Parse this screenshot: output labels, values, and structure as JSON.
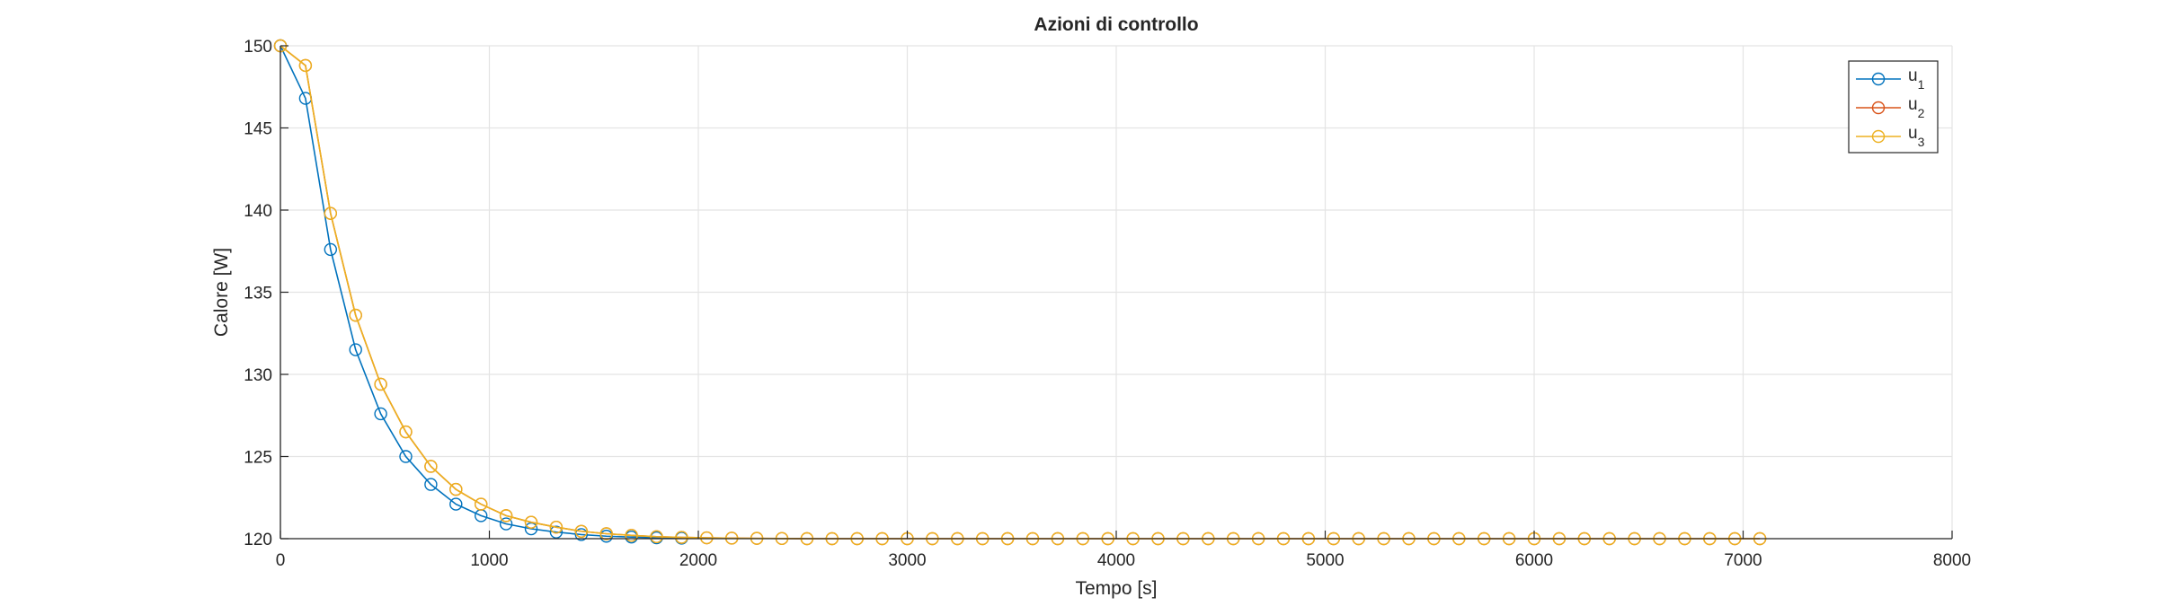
{
  "chart_data": {
    "type": "line",
    "title": "Azioni di controllo",
    "xlabel": "Tempo [s]",
    "ylabel": "Calore [W]",
    "xlim": [
      0,
      8000
    ],
    "ylim": [
      120,
      150
    ],
    "xticks": [
      0,
      1000,
      2000,
      3000,
      4000,
      5000,
      6000,
      7000,
      8000
    ],
    "yticks": [
      120,
      125,
      130,
      135,
      140,
      145,
      150
    ],
    "grid": true,
    "legend_position": "top-right",
    "marker": "circle",
    "series": [
      {
        "name": "u",
        "subscript": "1",
        "color": "#0072BD",
        "x": [
          0,
          120,
          240,
          360,
          480,
          600,
          720,
          840,
          960,
          1080,
          1200,
          1320,
          1440,
          1560,
          1680,
          1800,
          1920
        ],
        "y": [
          150,
          146.8,
          137.6,
          131.5,
          127.6,
          125.0,
          123.3,
          122.1,
          121.4,
          120.9,
          120.6,
          120.4,
          120.25,
          120.15,
          120.1,
          120.05,
          120.03
        ]
      },
      {
        "name": "u",
        "subscript": "2",
        "color": "#D95319",
        "x": [
          0,
          120,
          240,
          360,
          480,
          600,
          720,
          840,
          960,
          1080,
          1200,
          1320,
          1440,
          1560,
          1680,
          1800,
          1920,
          2040,
          2160,
          2280,
          2400,
          2520,
          2640,
          2760,
          2880,
          3000,
          3120,
          3240,
          3360,
          3480,
          3600,
          3720,
          3840,
          3960,
          4080,
          4200,
          4320,
          4440,
          4560,
          4680,
          4800,
          4920,
          5040,
          5160,
          5280,
          5400,
          5520,
          5640,
          5760,
          5880,
          6000,
          6120,
          6240,
          6360,
          6480,
          6600,
          6720,
          6840,
          6960,
          7080
        ],
        "y": [
          150,
          148.8,
          139.8,
          133.6,
          129.4,
          126.5,
          124.4,
          123.0,
          122.1,
          121.4,
          121.0,
          120.7,
          120.45,
          120.3,
          120.2,
          120.12,
          120.08,
          120.05,
          120.03,
          120.02,
          120.01,
          120,
          120,
          120,
          120,
          120,
          120,
          120,
          120,
          120,
          120,
          120,
          120,
          120,
          120,
          120,
          120,
          120,
          120,
          120,
          120,
          120,
          120,
          120,
          120,
          120,
          120,
          120,
          120,
          120,
          120,
          120,
          120,
          120,
          120,
          120,
          120,
          120,
          120,
          120
        ]
      },
      {
        "name": "u",
        "subscript": "3",
        "color": "#EDB120",
        "x": [
          0,
          120,
          240,
          360,
          480,
          600,
          720,
          840,
          960,
          1080,
          1200,
          1320,
          1440,
          1560,
          1680,
          1800,
          1920,
          2040,
          2160,
          2280,
          2400,
          2520,
          2640,
          2760,
          2880,
          3000,
          3120,
          3240,
          3360,
          3480,
          3600,
          3720,
          3840,
          3960,
          4080,
          4200,
          4320,
          4440,
          4560,
          4680,
          4800,
          4920,
          5040,
          5160,
          5280,
          5400,
          5520,
          5640,
          5760,
          5880,
          6000,
          6120,
          6240,
          6360,
          6480,
          6600,
          6720,
          6840,
          6960,
          7080
        ],
        "y": [
          150,
          148.8,
          139.8,
          133.6,
          129.4,
          126.5,
          124.4,
          123.0,
          122.1,
          121.4,
          121.0,
          120.7,
          120.45,
          120.3,
          120.2,
          120.12,
          120.08,
          120.05,
          120.03,
          120.02,
          120.01,
          120,
          120,
          120,
          120,
          120,
          120,
          120,
          120,
          120,
          120,
          120,
          120,
          120,
          120,
          120,
          120,
          120,
          120,
          120,
          120,
          120,
          120,
          120,
          120,
          120,
          120,
          120,
          120,
          120,
          120,
          120,
          120,
          120,
          120,
          120,
          120,
          120,
          120,
          120
        ]
      }
    ]
  }
}
